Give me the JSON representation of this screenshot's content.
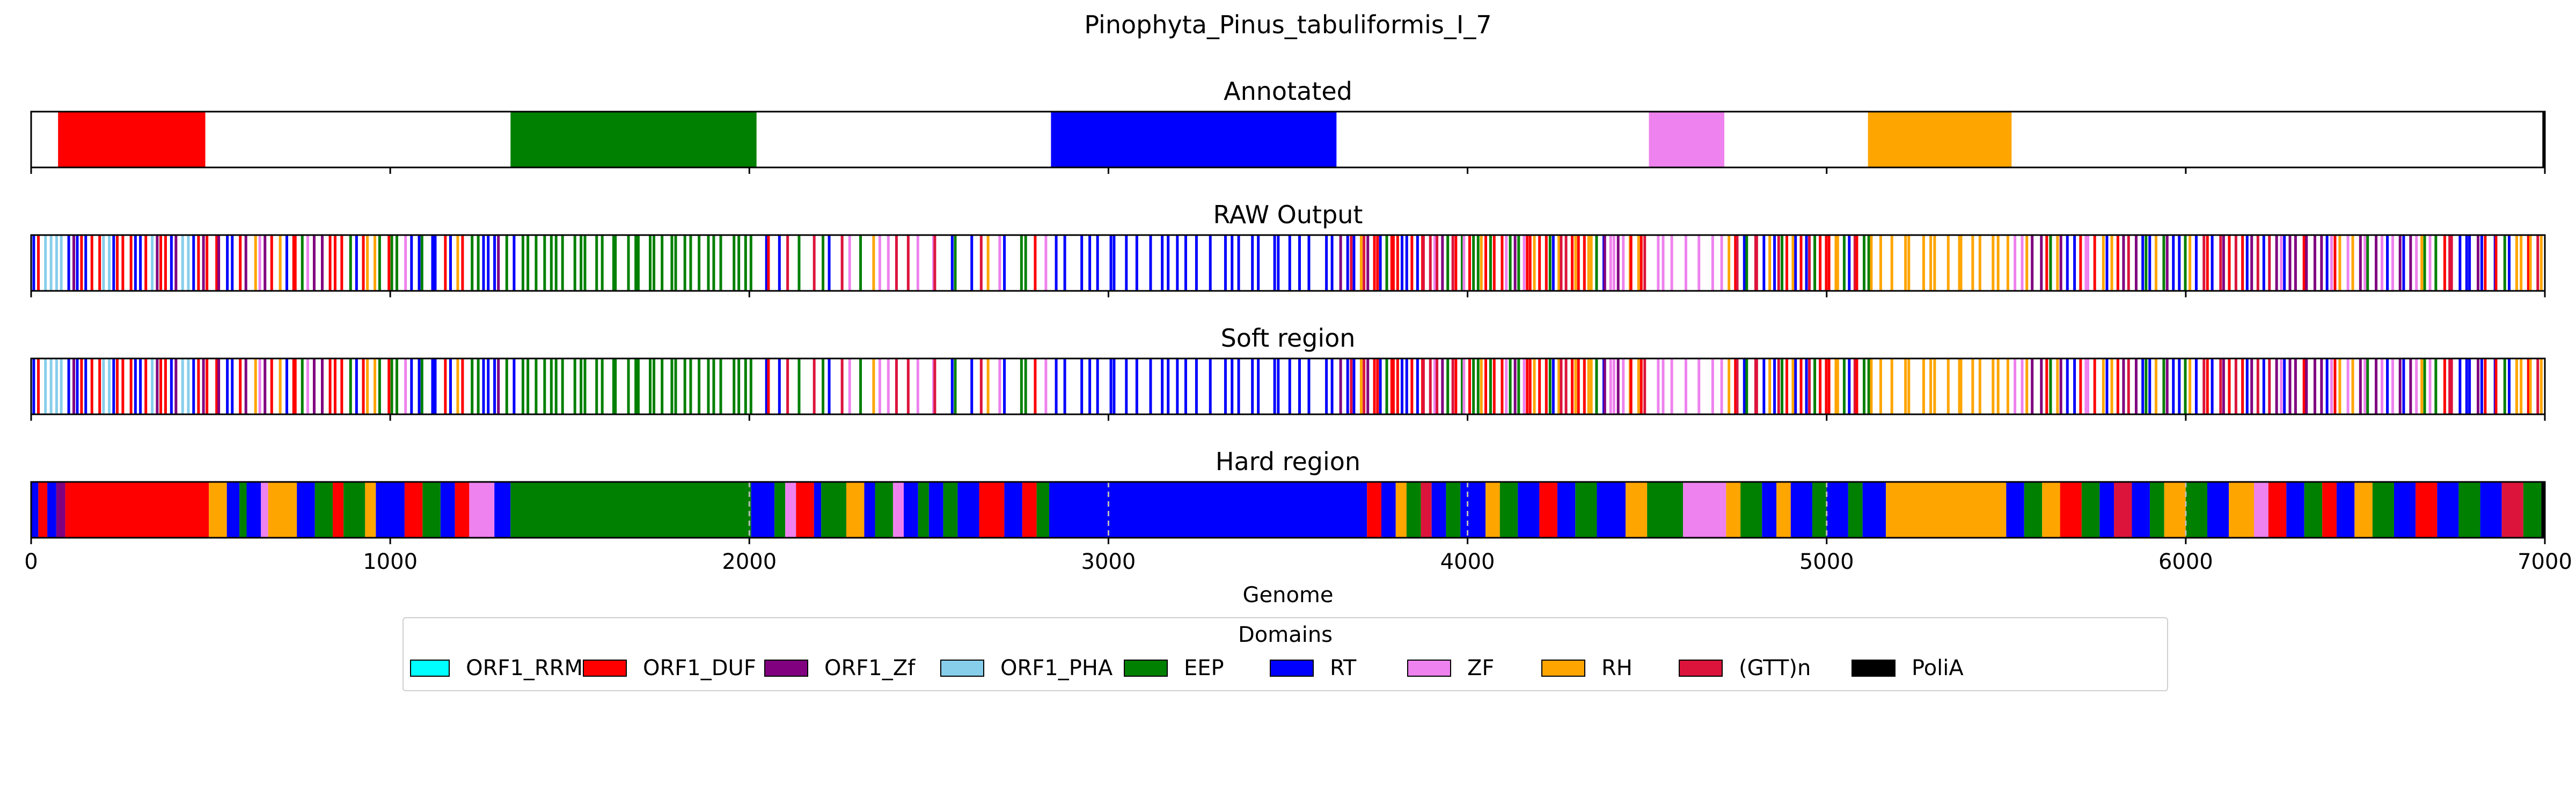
{
  "chart_data": {
    "type": "track",
    "title": "Pinophyta_Pinus_tabuliformis_I_7",
    "xlabel": "Genome",
    "xlim": [
      0,
      7000
    ],
    "xticks": [
      0,
      1000,
      2000,
      3000,
      4000,
      5000,
      6000,
      7000
    ],
    "panels": [
      {
        "name": "Annotated",
        "segments": [
          {
            "start": 75,
            "end": 485,
            "domain": "ORF1_DUF"
          },
          {
            "start": 1335,
            "end": 2020,
            "domain": "EEP"
          },
          {
            "start": 2840,
            "end": 3635,
            "domain": "RT"
          },
          {
            "start": 4505,
            "end": 4715,
            "domain": "ZF"
          },
          {
            "start": 5115,
            "end": 5515,
            "domain": "RH"
          },
          {
            "start": 6993,
            "end": 7000,
            "domain": "PoliA"
          }
        ]
      },
      {
        "name": "RAW Output",
        "pattern": [
          {
            "start": 0,
            "end": 500,
            "domains": [
              "ORF1_DUF",
              "RT",
              "ORF1_DUF",
              "ORF1_Zf",
              "ORF1_DUF",
              "ORF1_PHA",
              "ORF1_DUF"
            ],
            "n": 34
          },
          {
            "start": 500,
            "end": 1350,
            "domains": [
              "RH",
              "RT",
              "EEP",
              "ORF1_DUF",
              "ZF",
              "ORF1_Zf",
              "RT",
              "EEP"
            ],
            "n": 48
          },
          {
            "start": 1350,
            "end": 2020,
            "domains": [
              "EEP"
            ],
            "n": 32
          },
          {
            "start": 2020,
            "end": 2840,
            "domains": [
              "ORF1_DUF",
              "ZF",
              "RT",
              "RH",
              "EEP",
              "(GTT)n"
            ],
            "n": 30
          },
          {
            "start": 2840,
            "end": 3640,
            "domains": [
              "RT"
            ],
            "n": 28
          },
          {
            "start": 3640,
            "end": 4500,
            "domains": [
              "RT",
              "ORF1_DUF",
              "EEP",
              "(GTT)n",
              "RH",
              "ORF1_Zf",
              "ZF"
            ],
            "n": 70
          },
          {
            "start": 4500,
            "end": 4720,
            "domains": [
              "ZF"
            ],
            "n": 7
          },
          {
            "start": 4720,
            "end": 5120,
            "domains": [
              "EEP",
              "RT",
              "RH",
              "ORF1_DUF",
              "(GTT)n"
            ],
            "n": 30
          },
          {
            "start": 5120,
            "end": 5520,
            "domains": [
              "RH"
            ],
            "n": 16
          },
          {
            "start": 5520,
            "end": 7000,
            "domains": [
              "RT",
              "EEP",
              "ORF1_DUF",
              "RH",
              "(GTT)n",
              "ZF",
              "ORF1_Zf"
            ],
            "n": 95
          }
        ]
      },
      {
        "name": "Soft region",
        "pattern": [
          {
            "start": 0,
            "end": 500,
            "domains": [
              "ORF1_DUF",
              "RT",
              "ORF1_DUF",
              "ORF1_Zf",
              "ORF1_DUF",
              "ORF1_PHA",
              "ORF1_DUF"
            ],
            "n": 34
          },
          {
            "start": 500,
            "end": 1350,
            "domains": [
              "RH",
              "RT",
              "EEP",
              "ORF1_DUF",
              "ZF",
              "ORF1_Zf",
              "RT",
              "EEP"
            ],
            "n": 48
          },
          {
            "start": 1350,
            "end": 2020,
            "domains": [
              "EEP"
            ],
            "n": 32
          },
          {
            "start": 2020,
            "end": 2840,
            "domains": [
              "ORF1_DUF",
              "ZF",
              "RT",
              "RH",
              "EEP",
              "(GTT)n"
            ],
            "n": 30
          },
          {
            "start": 2840,
            "end": 3640,
            "domains": [
              "RT"
            ],
            "n": 28
          },
          {
            "start": 3640,
            "end": 4500,
            "domains": [
              "RT",
              "ORF1_DUF",
              "EEP",
              "(GTT)n",
              "RH",
              "ORF1_Zf",
              "ZF"
            ],
            "n": 70
          },
          {
            "start": 4500,
            "end": 4720,
            "domains": [
              "ZF"
            ],
            "n": 7
          },
          {
            "start": 4720,
            "end": 5120,
            "domains": [
              "EEP",
              "RT",
              "RH",
              "ORF1_DUF",
              "(GTT)n"
            ],
            "n": 30
          },
          {
            "start": 5120,
            "end": 5520,
            "domains": [
              "RH"
            ],
            "n": 16
          },
          {
            "start": 5520,
            "end": 7000,
            "domains": [
              "RT",
              "EEP",
              "ORF1_DUF",
              "RH",
              "(GTT)n",
              "ZF",
              "ORF1_Zf"
            ],
            "n": 95
          }
        ]
      },
      {
        "name": "Hard region",
        "segments": [
          {
            "start": 0,
            "end": 20,
            "domain": "RT"
          },
          {
            "start": 20,
            "end": 45,
            "domain": "ORF1_DUF"
          },
          {
            "start": 45,
            "end": 70,
            "domain": "RT"
          },
          {
            "start": 70,
            "end": 95,
            "domain": "ORF1_Zf"
          },
          {
            "start": 95,
            "end": 495,
            "domain": "ORF1_DUF"
          },
          {
            "start": 495,
            "end": 545,
            "domain": "RH"
          },
          {
            "start": 545,
            "end": 580,
            "domain": "RT"
          },
          {
            "start": 580,
            "end": 600,
            "domain": "EEP"
          },
          {
            "start": 600,
            "end": 640,
            "domain": "RT"
          },
          {
            "start": 640,
            "end": 660,
            "domain": "ZF"
          },
          {
            "start": 660,
            "end": 740,
            "domain": "RH"
          },
          {
            "start": 740,
            "end": 790,
            "domain": "RT"
          },
          {
            "start": 790,
            "end": 840,
            "domain": "EEP"
          },
          {
            "start": 840,
            "end": 870,
            "domain": "ORF1_DUF"
          },
          {
            "start": 870,
            "end": 930,
            "domain": "EEP"
          },
          {
            "start": 930,
            "end": 960,
            "domain": "RH"
          },
          {
            "start": 960,
            "end": 1040,
            "domain": "RT"
          },
          {
            "start": 1040,
            "end": 1090,
            "domain": "ORF1_DUF"
          },
          {
            "start": 1090,
            "end": 1140,
            "domain": "EEP"
          },
          {
            "start": 1140,
            "end": 1180,
            "domain": "RT"
          },
          {
            "start": 1180,
            "end": 1220,
            "domain": "ORF1_DUF"
          },
          {
            "start": 1220,
            "end": 1290,
            "domain": "ZF"
          },
          {
            "start": 1290,
            "end": 1335,
            "domain": "RT"
          },
          {
            "start": 1335,
            "end": 2005,
            "domain": "EEP"
          },
          {
            "start": 2005,
            "end": 2070,
            "domain": "RT"
          },
          {
            "start": 2070,
            "end": 2100,
            "domain": "EEP"
          },
          {
            "start": 2100,
            "end": 2130,
            "domain": "ZF"
          },
          {
            "start": 2130,
            "end": 2180,
            "domain": "ORF1_DUF"
          },
          {
            "start": 2180,
            "end": 2200,
            "domain": "RT"
          },
          {
            "start": 2200,
            "end": 2270,
            "domain": "EEP"
          },
          {
            "start": 2270,
            "end": 2320,
            "domain": "RH"
          },
          {
            "start": 2320,
            "end": 2350,
            "domain": "RT"
          },
          {
            "start": 2350,
            "end": 2400,
            "domain": "EEP"
          },
          {
            "start": 2400,
            "end": 2430,
            "domain": "ZF"
          },
          {
            "start": 2430,
            "end": 2470,
            "domain": "RT"
          },
          {
            "start": 2470,
            "end": 2500,
            "domain": "EEP"
          },
          {
            "start": 2500,
            "end": 2540,
            "domain": "RT"
          },
          {
            "start": 2540,
            "end": 2580,
            "domain": "EEP"
          },
          {
            "start": 2580,
            "end": 2640,
            "domain": "RT"
          },
          {
            "start": 2640,
            "end": 2710,
            "domain": "ORF1_DUF"
          },
          {
            "start": 2710,
            "end": 2760,
            "domain": "RT"
          },
          {
            "start": 2760,
            "end": 2800,
            "domain": "ORF1_DUF"
          },
          {
            "start": 2800,
            "end": 2835,
            "domain": "EEP"
          },
          {
            "start": 2835,
            "end": 3720,
            "domain": "RT"
          },
          {
            "start": 3720,
            "end": 3760,
            "domain": "ORF1_DUF"
          },
          {
            "start": 3760,
            "end": 3800,
            "domain": "RT"
          },
          {
            "start": 3800,
            "end": 3830,
            "domain": "RH"
          },
          {
            "start": 3830,
            "end": 3870,
            "domain": "EEP"
          },
          {
            "start": 3870,
            "end": 3900,
            "domain": "(GTT)n"
          },
          {
            "start": 3900,
            "end": 3940,
            "domain": "RT"
          },
          {
            "start": 3940,
            "end": 3980,
            "domain": "EEP"
          },
          {
            "start": 3980,
            "end": 4050,
            "domain": "RT"
          },
          {
            "start": 4050,
            "end": 4090,
            "domain": "RH"
          },
          {
            "start": 4090,
            "end": 4140,
            "domain": "EEP"
          },
          {
            "start": 4140,
            "end": 4200,
            "domain": "RT"
          },
          {
            "start": 4200,
            "end": 4250,
            "domain": "ORF1_DUF"
          },
          {
            "start": 4250,
            "end": 4300,
            "domain": "RT"
          },
          {
            "start": 4300,
            "end": 4360,
            "domain": "EEP"
          },
          {
            "start": 4360,
            "end": 4440,
            "domain": "RT"
          },
          {
            "start": 4440,
            "end": 4500,
            "domain": "RH"
          },
          {
            "start": 4500,
            "end": 4600,
            "domain": "EEP"
          },
          {
            "start": 4600,
            "end": 4720,
            "domain": "ZF"
          },
          {
            "start": 4720,
            "end": 4760,
            "domain": "RH"
          },
          {
            "start": 4760,
            "end": 4820,
            "domain": "EEP"
          },
          {
            "start": 4820,
            "end": 4860,
            "domain": "RT"
          },
          {
            "start": 4860,
            "end": 4900,
            "domain": "RH"
          },
          {
            "start": 4900,
            "end": 4960,
            "domain": "RT"
          },
          {
            "start": 4960,
            "end": 5000,
            "domain": "EEP"
          },
          {
            "start": 5000,
            "end": 5060,
            "domain": "RT"
          },
          {
            "start": 5060,
            "end": 5100,
            "domain": "EEP"
          },
          {
            "start": 5100,
            "end": 5165,
            "domain": "RT"
          },
          {
            "start": 5165,
            "end": 5500,
            "domain": "RH"
          },
          {
            "start": 5500,
            "end": 5550,
            "domain": "RT"
          },
          {
            "start": 5550,
            "end": 5600,
            "domain": "EEP"
          },
          {
            "start": 5600,
            "end": 5650,
            "domain": "RH"
          },
          {
            "start": 5650,
            "end": 5710,
            "domain": "ORF1_DUF"
          },
          {
            "start": 5710,
            "end": 5760,
            "domain": "EEP"
          },
          {
            "start": 5760,
            "end": 5800,
            "domain": "RT"
          },
          {
            "start": 5800,
            "end": 5850,
            "domain": "(GTT)n"
          },
          {
            "start": 5850,
            "end": 5900,
            "domain": "RT"
          },
          {
            "start": 5900,
            "end": 5940,
            "domain": "EEP"
          },
          {
            "start": 5940,
            "end": 6000,
            "domain": "RH"
          },
          {
            "start": 6000,
            "end": 6060,
            "domain": "EEP"
          },
          {
            "start": 6060,
            "end": 6120,
            "domain": "RT"
          },
          {
            "start": 6120,
            "end": 6190,
            "domain": "RH"
          },
          {
            "start": 6190,
            "end": 6230,
            "domain": "ZF"
          },
          {
            "start": 6230,
            "end": 6280,
            "domain": "ORF1_DUF"
          },
          {
            "start": 6280,
            "end": 6330,
            "domain": "RT"
          },
          {
            "start": 6330,
            "end": 6380,
            "domain": "EEP"
          },
          {
            "start": 6380,
            "end": 6420,
            "domain": "ORF1_DUF"
          },
          {
            "start": 6420,
            "end": 6470,
            "domain": "RT"
          },
          {
            "start": 6470,
            "end": 6520,
            "domain": "RH"
          },
          {
            "start": 6520,
            "end": 6580,
            "domain": "EEP"
          },
          {
            "start": 6580,
            "end": 6640,
            "domain": "RT"
          },
          {
            "start": 6640,
            "end": 6700,
            "domain": "ORF1_DUF"
          },
          {
            "start": 6700,
            "end": 6760,
            "domain": "RT"
          },
          {
            "start": 6760,
            "end": 6820,
            "domain": "EEP"
          },
          {
            "start": 6820,
            "end": 6880,
            "domain": "RT"
          },
          {
            "start": 6880,
            "end": 6940,
            "domain": "(GTT)n"
          },
          {
            "start": 6940,
            "end": 6990,
            "domain": "EEP"
          },
          {
            "start": 6990,
            "end": 7000,
            "domain": "PoliA"
          }
        ],
        "dashed_lines": [
          2000,
          3000,
          4000,
          5000,
          6000
        ]
      }
    ],
    "legend": {
      "title": "Domains",
      "placement": "bottom-center",
      "entries": [
        {
          "name": "ORF1_RRM",
          "color": "#00ffff"
        },
        {
          "name": "ORF1_DUF",
          "color": "#ff0000"
        },
        {
          "name": "ORF1_Zf",
          "color": "#800080"
        },
        {
          "name": "ORF1_PHA",
          "color": "#87ceeb"
        },
        {
          "name": "EEP",
          "color": "#008000"
        },
        {
          "name": "RT",
          "color": "#0000ff"
        },
        {
          "name": "ZF",
          "color": "#ee82ee"
        },
        {
          "name": "RH",
          "color": "#ffa500"
        },
        {
          "name": "(GTT)n",
          "color": "#dc143c"
        },
        {
          "name": "PoliA",
          "color": "#000000"
        }
      ]
    }
  }
}
